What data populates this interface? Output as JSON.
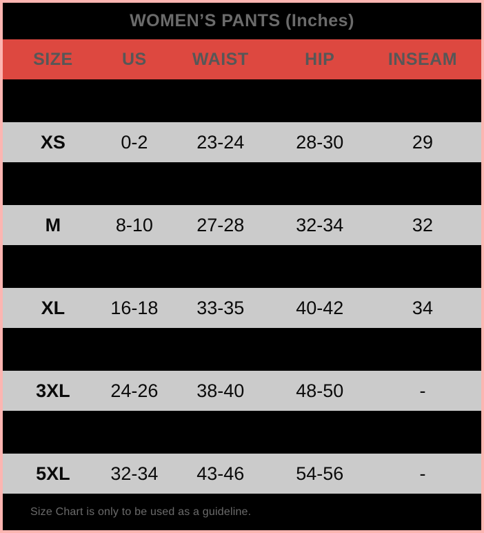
{
  "title": "WOMEN’S PANTS (Inches)",
  "colors": {
    "border_pink": "#fcb5b1",
    "header_red": "#dd4840",
    "row_gray": "#cbcbcb",
    "row_black": "#000000",
    "title_text_gray": "#6b6b6b",
    "header_text_gray": "#575757",
    "data_text": "#0a0a0a"
  },
  "table": {
    "columns": [
      "SIZE",
      "US",
      "WAIST",
      "HIP",
      "INSEAM"
    ],
    "rows": [
      {
        "hidden": true,
        "cells": [
          "",
          "",
          "",
          "",
          ""
        ]
      },
      {
        "hidden": false,
        "cells": [
          "XS",
          "0-2",
          "23-24",
          "28-30",
          "29"
        ]
      },
      {
        "hidden": true,
        "cells": [
          "",
          "",
          "",
          "",
          ""
        ]
      },
      {
        "hidden": false,
        "cells": [
          "M",
          "8-10",
          "27-28",
          "32-34",
          "32"
        ]
      },
      {
        "hidden": true,
        "cells": [
          "",
          "",
          "",
          "",
          ""
        ]
      },
      {
        "hidden": false,
        "cells": [
          "XL",
          "16-18",
          "33-35",
          "40-42",
          "34"
        ]
      },
      {
        "hidden": true,
        "cells": [
          "",
          "",
          "",
          "",
          ""
        ]
      },
      {
        "hidden": false,
        "cells": [
          "3XL",
          "24-26",
          "38-40",
          "48-50",
          "-"
        ]
      },
      {
        "hidden": true,
        "cells": [
          "",
          "",
          "",
          "",
          ""
        ]
      },
      {
        "hidden": false,
        "cells": [
          "5XL",
          "32-34",
          "43-46",
          "54-56",
          "-"
        ]
      }
    ]
  },
  "footer": "Size Chart is only to be used as a guideline."
}
